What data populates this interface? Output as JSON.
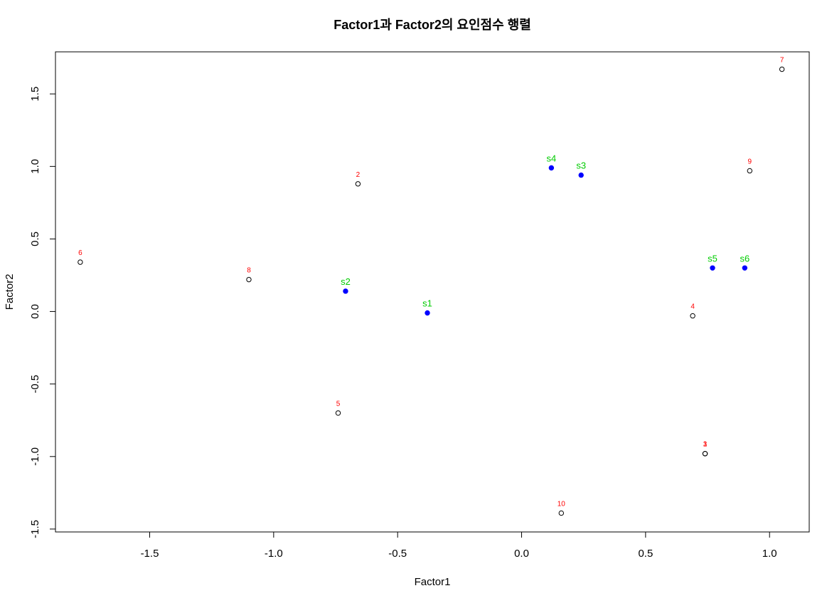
{
  "chart_data": {
    "type": "scatter",
    "title": "Factor1과 Factor2의 요인점수 행렬",
    "xlabel": "Factor1",
    "ylabel": "Factor2",
    "xlim": [
      -1.88,
      1.16
    ],
    "ylim": [
      -1.52,
      1.79
    ],
    "xticks": [
      -1.5,
      -1.0,
      -0.5,
      0.0,
      0.5,
      1.0
    ],
    "xtick_labels": [
      "-1.5",
      "-1.0",
      "-0.5",
      "0.0",
      "0.5",
      "1.0"
    ],
    "yticks": [
      -1.5,
      -1.0,
      -0.5,
      0.0,
      0.5,
      1.0,
      1.5
    ],
    "ytick_labels": [
      "-1.5",
      "-1.0",
      "-0.5",
      "0.0",
      "0.5",
      "1.0",
      "1.5"
    ],
    "grid": false,
    "series": [
      {
        "marker": "open-circle",
        "color": "#000000",
        "label_color": "#ff0000",
        "points": [
          {
            "label": "1",
            "x": 0.74,
            "y": -0.98
          },
          {
            "label": "2",
            "x": -0.66,
            "y": 0.88
          },
          {
            "label": "3",
            "x": 0.74,
            "y": -0.98
          },
          {
            "label": "4",
            "x": 0.69,
            "y": -0.03
          },
          {
            "label": "5",
            "x": -0.74,
            "y": -0.7
          },
          {
            "label": "6",
            "x": -1.78,
            "y": 0.34
          },
          {
            "label": "7",
            "x": 1.05,
            "y": 1.67
          },
          {
            "label": "8",
            "x": -1.1,
            "y": 0.22
          },
          {
            "label": "9",
            "x": 0.92,
            "y": 0.97
          },
          {
            "label": "10",
            "x": 0.16,
            "y": -1.39
          }
        ]
      },
      {
        "marker": "filled-circle",
        "color": "#0000ff",
        "label_color": "#00cc00",
        "points": [
          {
            "label": "s1",
            "x": -0.38,
            "y": -0.01
          },
          {
            "label": "s2",
            "x": -0.71,
            "y": 0.14
          },
          {
            "label": "s3",
            "x": 0.24,
            "y": 0.94
          },
          {
            "label": "s4",
            "x": 0.12,
            "y": 0.99
          },
          {
            "label": "s5",
            "x": 0.77,
            "y": 0.3
          },
          {
            "label": "s6",
            "x": 0.9,
            "y": 0.3
          }
        ]
      }
    ]
  }
}
